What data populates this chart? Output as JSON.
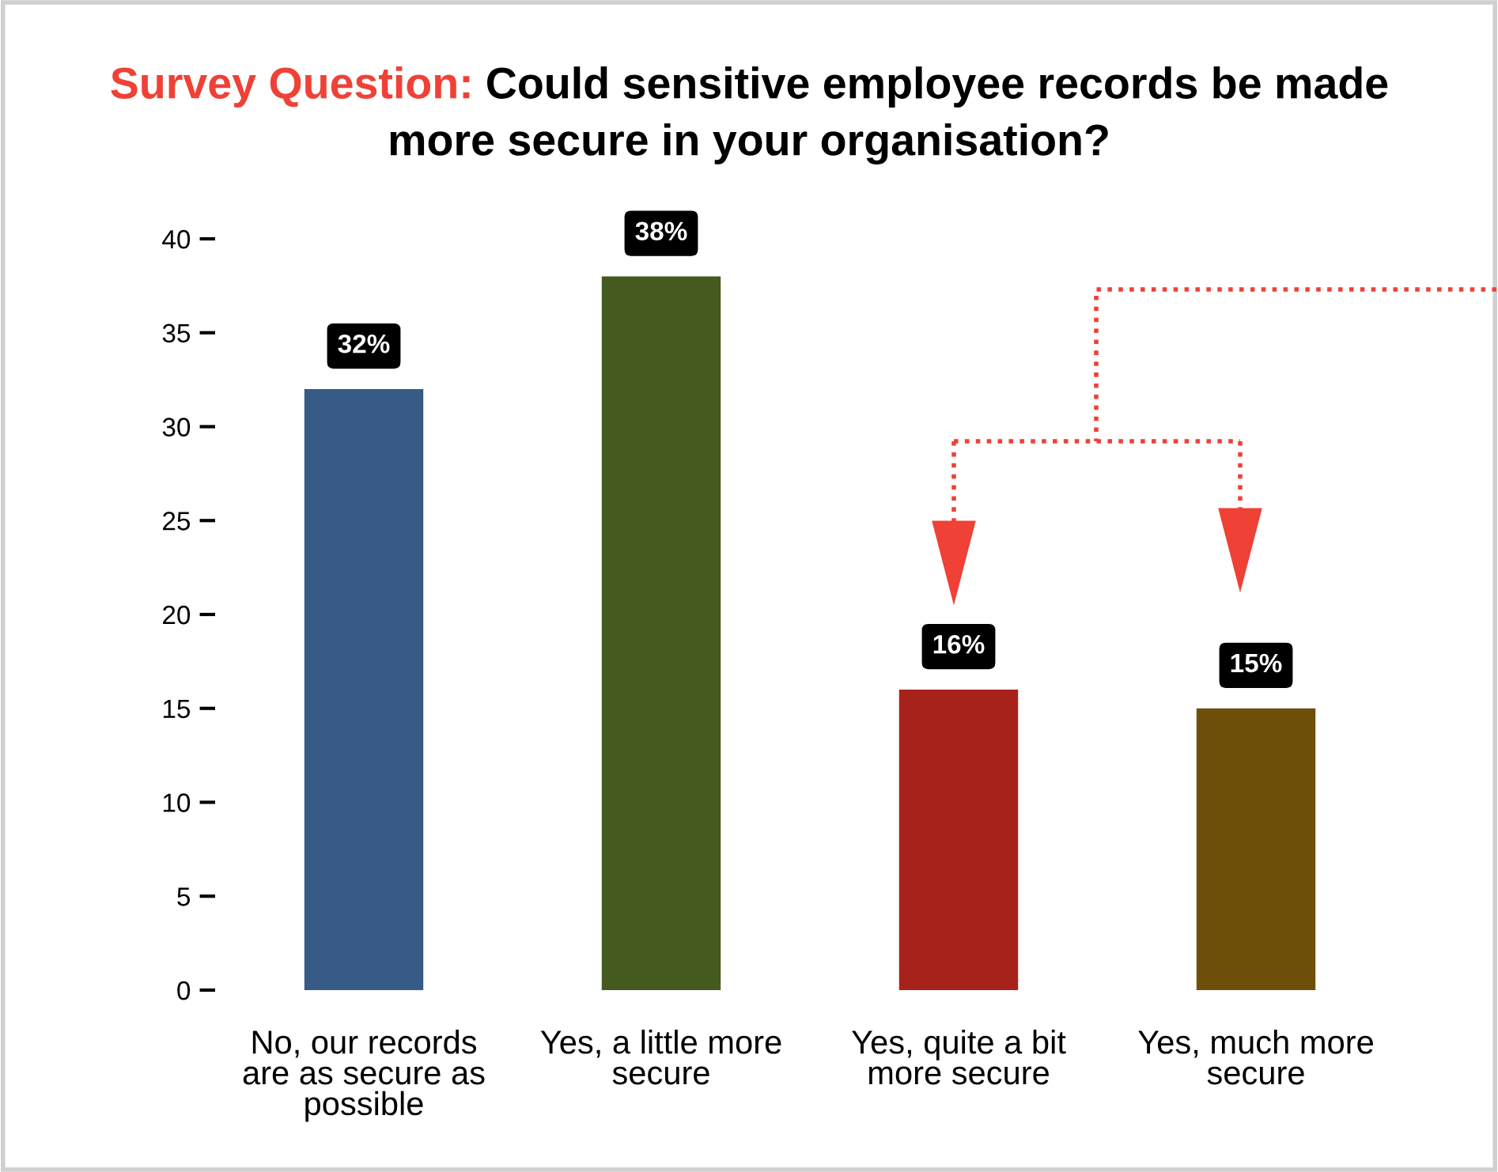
{
  "chart_data": {
    "type": "bar",
    "title": "Survey Question: Could sensitive employee records be made more secure in your organisation?",
    "categories": [
      "No, our records are as secure as possible",
      "Yes, a little more secure",
      "Yes, quite a bit more secure",
      "Yes, much more secure"
    ],
    "values": [
      32,
      38,
      16,
      15
    ],
    "colors": [
      "#375a86",
      "#455a1e",
      "#a8221c",
      "#6e4f0a"
    ],
    "value_labels": [
      "32%",
      "38%",
      "16%",
      "15%"
    ],
    "ylim": [
      0,
      40
    ],
    "yticks": [
      0,
      5,
      10,
      15,
      20,
      25,
      30,
      35,
      40
    ],
    "grid": false,
    "legend": false
  }
}
